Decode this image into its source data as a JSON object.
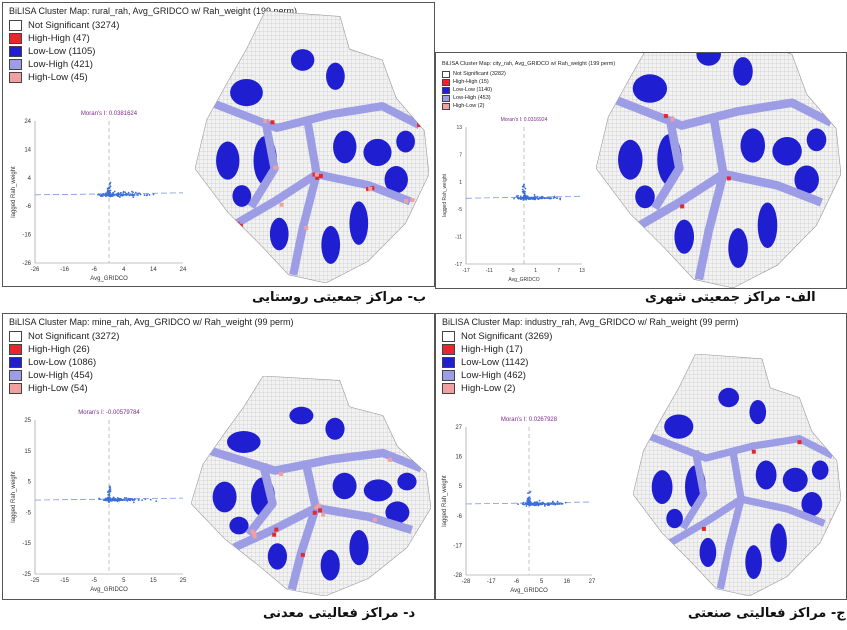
{
  "colors": {
    "not_significant": "#ffffff",
    "high_high": "#e8262b",
    "low_low": "#1f1fd1",
    "low_high": "#9d9de6",
    "high_low": "#f0a0a0",
    "scatter": "#3a6fd8",
    "moran_label": "#7a2a8a"
  },
  "panels": [
    {
      "id": "rural",
      "title": "BiLISA Cluster Map: rural_rah, Avg_GRIDCO w/ Rah_weight (199 perm)",
      "legend": [
        "Not Significant (3274)",
        "High-High (47)",
        "Low-Low (1105)",
        "Low-High (421)",
        "High-Low (45)"
      ],
      "moran": "Moran's I: 0.0381624",
      "xlabel": "Avg_GRIDCO",
      "ylabel": "lagged Rah_weight",
      "xticks": [
        "-26",
        "-16",
        "-6",
        "4",
        "14",
        "24"
      ],
      "yticks": [
        "24",
        "14",
        "4",
        "-6",
        "-16",
        "-26"
      ],
      "caption": "ب- مراکز جمعیتی روستایی"
    },
    {
      "id": "city",
      "title": "BiLISA Cluster Map: city_rah, Avg_GRIDCO w/ Rah_weight (199 perm)",
      "legend": [
        "Not Significant (3282)",
        "High-High (15)",
        "Low-Low (1140)",
        "Low-High (453)",
        "High-Low (2)"
      ],
      "moran": "Moran's I: 0.0316924",
      "xlabel": "Avg_GRIDCO",
      "ylabel": "lagged Rah_weight",
      "xticks": [
        "-17",
        "-11",
        "-5",
        "1",
        "7",
        "13"
      ],
      "yticks": [
        "13",
        "7",
        "1",
        "-5",
        "-11",
        "-17"
      ],
      "caption": "الف- مراکز جمعیتی شهری"
    },
    {
      "id": "mine",
      "title": "BiLISA Cluster Map: mine_rah, Avg_GRIDCO w/ Rah_weight (99 perm)",
      "legend": [
        "Not Significant (3272)",
        "High-High (26)",
        "Low-Low (1086)",
        "Low-High (454)",
        "High-Low (54)"
      ],
      "moran": "Moran's I: -0.00579784",
      "xlabel": "Avg_GRIDCO",
      "ylabel": "lagged Rah_weight",
      "xticks": [
        "-25",
        "-15",
        "-5",
        "5",
        "15",
        "25"
      ],
      "yticks": [
        "25",
        "15",
        "5",
        "-5",
        "-15",
        "-25"
      ],
      "caption": "د- مراکز فعالیتی معدنی"
    },
    {
      "id": "industry",
      "title": "BiLISA Cluster Map: industry_rah, Avg_GRIDCO w/ Rah_weight (99 perm)",
      "legend": [
        "Not Significant (3269)",
        "High-High (17)",
        "Low-Low (1142)",
        "Low-High (462)",
        "High-Low (2)"
      ],
      "moran": "Moran's I: 0.0267928",
      "xlabel": "Avg_GRIDCO",
      "ylabel": "lagged Rah_weight",
      "xticks": [
        "-28",
        "-17",
        "-6",
        "5",
        "16",
        "27"
      ],
      "yticks": [
        "27",
        "16",
        "5",
        "-6",
        "-17",
        "-28"
      ],
      "caption": "ج- مراکز فعالیتی صنعتی"
    }
  ]
}
